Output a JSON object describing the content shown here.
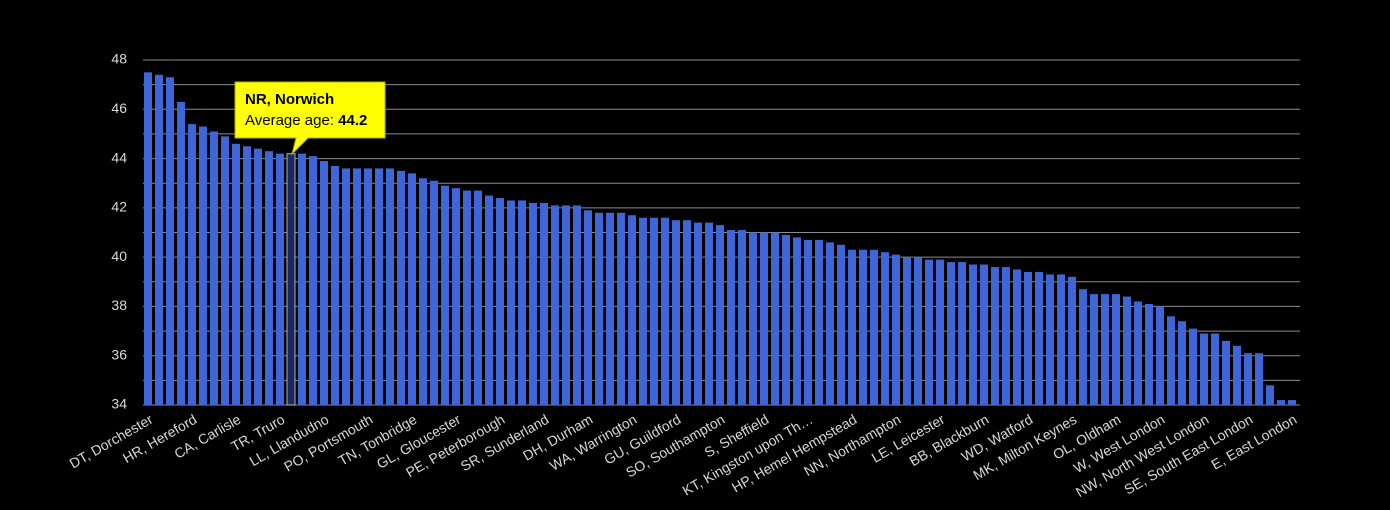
{
  "chart_data": {
    "type": "bar",
    "categories": [
      "DT, Dorchester",
      null,
      null,
      null,
      "HR, Hereford",
      null,
      null,
      null,
      "CA, Carlisle",
      null,
      null,
      null,
      "TR, Truro",
      null,
      null,
      null,
      "LL, Llandudno",
      null,
      null,
      null,
      "PO, Portsmouth",
      null,
      null,
      null,
      "TN, Tonbridge",
      null,
      null,
      null,
      "GL, Gloucester",
      null,
      null,
      null,
      "PE, Peterborough",
      null,
      null,
      null,
      "SR, Sunderland",
      null,
      null,
      null,
      "DH, Durham",
      null,
      null,
      null,
      "WA, Warrington",
      null,
      null,
      null,
      "GU, Guildford",
      null,
      null,
      null,
      "SO, Southampton",
      null,
      null,
      null,
      "S, Sheffield",
      null,
      null,
      null,
      "KT, Kingston upon Th…",
      null,
      null,
      null,
      "HP, Hemel Hempstead",
      null,
      null,
      null,
      "NN, Northampton",
      null,
      null,
      null,
      "LE, Leicester",
      null,
      null,
      null,
      "BB, Blackburn",
      null,
      null,
      null,
      "WD, Watford",
      null,
      null,
      null,
      "MK, Milton Keynes",
      null,
      null,
      null,
      "OL, Oldham",
      null,
      null,
      null,
      "W, West London",
      null,
      null,
      null,
      "NW, North West London",
      null,
      null,
      null,
      "SE, South East London",
      null,
      null,
      null,
      "E, East London"
    ],
    "values": [
      47.5,
      47.4,
      47.3,
      46.3,
      45.4,
      45.3,
      45.1,
      44.9,
      44.6,
      44.5,
      44.4,
      44.3,
      44.2,
      44.2,
      44.2,
      44.1,
      43.9,
      43.7,
      43.6,
      43.6,
      43.6,
      43.6,
      43.6,
      43.5,
      43.4,
      43.2,
      43.1,
      42.9,
      42.8,
      42.7,
      42.7,
      42.5,
      42.4,
      42.3,
      42.3,
      42.2,
      42.2,
      42.1,
      42.1,
      42.1,
      41.9,
      41.8,
      41.8,
      41.8,
      41.7,
      41.6,
      41.6,
      41.6,
      41.5,
      41.5,
      41.4,
      41.4,
      41.3,
      41.1,
      41.1,
      41.0,
      41.0,
      41.0,
      40.9,
      40.8,
      40.7,
      40.7,
      40.6,
      40.5,
      40.3,
      40.3,
      40.3,
      40.2,
      40.1,
      40.0,
      40.0,
      39.9,
      39.9,
      39.8,
      39.8,
      39.7,
      39.7,
      39.6,
      39.6,
      39.5,
      39.4,
      39.4,
      39.3,
      39.3,
      39.2,
      38.7,
      38.5,
      38.5,
      38.5,
      38.4,
      38.2,
      38.1,
      38.0,
      37.6,
      37.4,
      37.1,
      36.9,
      36.9,
      36.6,
      36.4,
      36.1,
      36.1,
      34.8,
      34.2,
      34.2
    ],
    "color": "#3f66d6",
    "highlight_color": "#1a2a5e",
    "highlight_index": 13,
    "ylim": [
      34,
      48
    ],
    "yticks": [
      34,
      36,
      38,
      40,
      42,
      44,
      46,
      48
    ],
    "minor_gridlines": [
      35,
      37,
      39,
      41,
      43,
      45,
      47
    ],
    "grid": true,
    "tooltip": {
      "title": "NR, Norwich",
      "label": "Average age:"
    }
  }
}
